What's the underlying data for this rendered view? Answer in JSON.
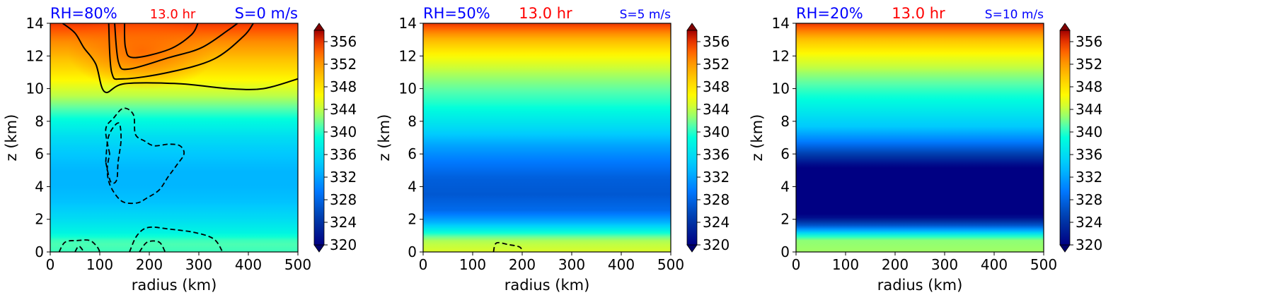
{
  "chart_data": [
    {
      "type": "heatmap",
      "xlabel": "radius (km)",
      "ylabel": "z (km)",
      "xlim": [
        0,
        500
      ],
      "ylim": [
        0,
        14
      ],
      "xticks": [
        "0",
        "100",
        "200",
        "300",
        "400",
        "500"
      ],
      "yticks": [
        "0",
        "2",
        "4",
        "6",
        "8",
        "10",
        "12",
        "14"
      ],
      "left_label": "RH=80%",
      "center_label": "13.0 hr",
      "right_label": "S=0 m/s",
      "right_label_small": false,
      "center_label_small": true,
      "colorbar": {
        "min": 320,
        "max": 358,
        "ticks": [
          "320",
          "324",
          "328",
          "332",
          "336",
          "340",
          "344",
          "348",
          "352",
          "356"
        ],
        "extend": "both"
      },
      "profile": [
        [
          0,
          340.5
        ],
        [
          0.6,
          341
        ],
        [
          1.2,
          338
        ],
        [
          2,
          336
        ],
        [
          3,
          334
        ],
        [
          4,
          333.2
        ],
        [
          5,
          333.2
        ],
        [
          6,
          334.3
        ],
        [
          7,
          336
        ],
        [
          8,
          338.5
        ],
        [
          9,
          342
        ],
        [
          10,
          345
        ],
        [
          11,
          348
        ],
        [
          12,
          350.5
        ],
        [
          13,
          353
        ],
        [
          14,
          356
        ]
      ],
      "warm_core": {
        "r": 185,
        "z": 12.3,
        "rr": 150,
        "zz": 2.4,
        "amp": 3
      },
      "solid_contours": [
        [
          [
            150,
            14
          ],
          [
            152,
            12.5
          ],
          [
            168,
            11.9
          ],
          [
            240,
            12.4
          ],
          [
            285,
            13.3
          ],
          [
            298,
            14
          ]
        ],
        [
          [
            130,
            14
          ],
          [
            138,
            11.6
          ],
          [
            160,
            11.2
          ],
          [
            240,
            11.9
          ],
          [
            305,
            12.5
          ],
          [
            360,
            13.6
          ],
          [
            378,
            14
          ]
        ],
        [
          [
            118,
            14
          ],
          [
            124,
            11.0
          ],
          [
            148,
            10.6
          ],
          [
            240,
            11.0
          ],
          [
            330,
            11.8
          ],
          [
            390,
            13.2
          ],
          [
            410,
            14
          ]
        ],
        [
          [
            25,
            14
          ],
          [
            50,
            13.4
          ],
          [
            68,
            12.5
          ],
          [
            92,
            11.5
          ],
          [
            110,
            9.8
          ],
          [
            150,
            10.3
          ],
          [
            260,
            10.3
          ],
          [
            360,
            10.0
          ],
          [
            430,
            10.0
          ],
          [
            500,
            10.6
          ]
        ]
      ],
      "dashed_contours": [
        [
          [
            120,
            6.0
          ],
          [
            112,
            7.5
          ],
          [
            128,
            8.2
          ],
          [
            148,
            8.8
          ],
          [
            168,
            8.4
          ],
          [
            172,
            7.2
          ],
          [
            190,
            6.8
          ],
          [
            210,
            6.5
          ],
          [
            240,
            6.6
          ],
          [
            262,
            6.5
          ],
          [
            270,
            6.0
          ],
          [
            255,
            5.3
          ],
          [
            238,
            4.6
          ],
          [
            220,
            3.8
          ],
          [
            195,
            3.3
          ],
          [
            175,
            3.0
          ],
          [
            145,
            3.1
          ],
          [
            122,
            4.0
          ],
          [
            115,
            5.0
          ],
          [
            120,
            6.0
          ]
        ],
        [
          [
            112,
            5.5
          ],
          [
            118,
            7.1
          ],
          [
            138,
            7.9
          ],
          [
            143,
            6.9
          ],
          [
            137,
            5.5
          ],
          [
            134,
            4.4
          ],
          [
            122,
            4.3
          ],
          [
            112,
            5.5
          ]
        ],
        [
          [
            18,
            0
          ],
          [
            30,
            0.6
          ],
          [
            55,
            0.7
          ],
          [
            80,
            0.7
          ],
          [
            95,
            0.3
          ],
          [
            100,
            0
          ]
        ],
        [
          [
            160,
            0
          ],
          [
            175,
            1.0
          ],
          [
            198,
            1.5
          ],
          [
            240,
            1.4
          ],
          [
            290,
            1.2
          ],
          [
            330,
            0.8
          ],
          [
            348,
            0
          ]
        ],
        [
          [
            180,
            0
          ],
          [
            196,
            0.6
          ],
          [
            220,
            0.6
          ],
          [
            232,
            0
          ]
        ],
        [
          [
            50,
            0
          ],
          [
            58,
            0.35
          ],
          [
            68,
            0
          ]
        ]
      ]
    },
    {
      "type": "heatmap",
      "xlabel": "radius (km)",
      "ylabel": "z (km)",
      "xlim": [
        0,
        500
      ],
      "ylim": [
        0,
        14
      ],
      "xticks": [
        "0",
        "100",
        "200",
        "300",
        "400",
        "500"
      ],
      "yticks": [
        "0",
        "2",
        "4",
        "6",
        "8",
        "10",
        "12",
        "14"
      ],
      "left_label": "RH=50%",
      "center_label": "13.0 hr",
      "right_label": "S=5 m/s",
      "right_label_small": true,
      "center_label_small": false,
      "colorbar": {
        "min": 320,
        "max": 358,
        "ticks": [
          "320",
          "324",
          "328",
          "332",
          "336",
          "340",
          "344",
          "348",
          "352",
          "356"
        ],
        "extend": "both"
      },
      "profile": [
        [
          0,
          345
        ],
        [
          0.8,
          343
        ],
        [
          1.3,
          338
        ],
        [
          1.8,
          333
        ],
        [
          2.5,
          328.5
        ],
        [
          3.5,
          327
        ],
        [
          4.5,
          327.5
        ],
        [
          5.5,
          329.5
        ],
        [
          6.5,
          332
        ],
        [
          7.5,
          335.5
        ],
        [
          9,
          339.5
        ],
        [
          10,
          341.5
        ],
        [
          11,
          343.5
        ],
        [
          12,
          346.5
        ],
        [
          13,
          350.5
        ],
        [
          14,
          356
        ]
      ],
      "warm_core": null,
      "solid_contours": [],
      "dashed_contours": [
        [
          [
            142,
            0
          ],
          [
            148,
            0.55
          ],
          [
            172,
            0.45
          ],
          [
            195,
            0.3
          ],
          [
            200,
            0
          ]
        ]
      ]
    },
    {
      "type": "heatmap",
      "xlabel": "radius (km)",
      "ylabel": "z (km)",
      "xlim": [
        0,
        500
      ],
      "ylim": [
        0,
        14
      ],
      "xticks": [
        "0",
        "100",
        "200",
        "300",
        "400",
        "500"
      ],
      "yticks": [
        "0",
        "2",
        "4",
        "6",
        "8",
        "10",
        "12",
        "14"
      ],
      "left_label": "RH=20%",
      "center_label": "13.0 hr",
      "right_label": "S=10 m/s",
      "right_label_small": true,
      "center_label_small": false,
      "colorbar": {
        "min": 320,
        "max": 358,
        "ticks": [
          "320",
          "324",
          "328",
          "332",
          "336",
          "340",
          "344",
          "348",
          "352",
          "356"
        ],
        "extend": "both"
      },
      "profile": [
        [
          0,
          343
        ],
        [
          0.8,
          342.5
        ],
        [
          1.2,
          335
        ],
        [
          1.6,
          327
        ],
        [
          2.2,
          320
        ],
        [
          5.2,
          320
        ],
        [
          6,
          325
        ],
        [
          6.8,
          330
        ],
        [
          7.7,
          334.5
        ],
        [
          9,
          338
        ],
        [
          10,
          340.5
        ],
        [
          11,
          343
        ],
        [
          12,
          346
        ],
        [
          13,
          350
        ],
        [
          14,
          356
        ]
      ],
      "warm_core": null,
      "solid_contours": [],
      "dashed_contours": []
    }
  ]
}
